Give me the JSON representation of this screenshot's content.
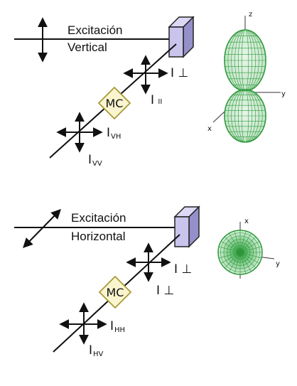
{
  "top": {
    "excitation_line1": "Excitación",
    "excitation_line2": "Vertical",
    "monochromator": "MC",
    "i_perp": "I",
    "i_perp_sym": "⊥",
    "i_par": "I",
    "i_par_sym": "II",
    "i_vh": "I",
    "i_vh_sub": "VH",
    "i_vv": "I",
    "i_vv_sub": "VV",
    "axis_z": "z",
    "axis_y": "y",
    "axis_x": "x"
  },
  "bottom": {
    "excitation_line1": "Excitación",
    "excitation_line2": "Horizontal",
    "monochromator": "MC",
    "i_perp1": "I",
    "i_perp1_sym": "⊥",
    "i_perp2": "I",
    "i_perp2_sym": "⊥",
    "i_hh": "I",
    "i_hh_sub": "HH",
    "i_hv": "I",
    "i_hv_sub": "HV",
    "axis_x": "x",
    "axis_y": "y"
  },
  "colors": {
    "sample": "#c9c4ec",
    "sample_dark": "#9590c9",
    "monochromator_fill": "#fbf5cf",
    "monochromator_stroke": "#a89a3a",
    "lobe": "#2f9a3c",
    "line": "#111111"
  }
}
